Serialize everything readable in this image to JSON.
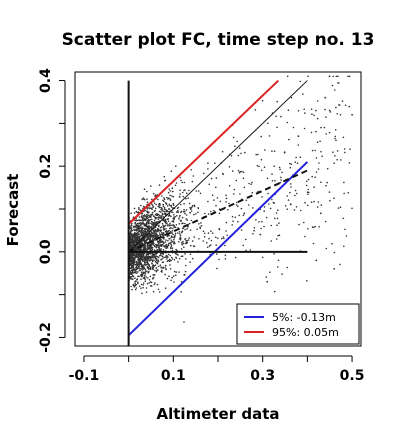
{
  "chart_data": {
    "type": "scatter",
    "title": "Scatter plot FC, time step no. 13",
    "xlabel": "Altimeter data",
    "ylabel": "Forecast",
    "xlim": [
      -0.12,
      0.52
    ],
    "ylim": [
      -0.22,
      0.42
    ],
    "x_ticks": [
      -0.1,
      0.1,
      0.3,
      0.5
    ],
    "x_tick_labels": [
      "-0.1",
      "0.1",
      "0.3",
      "0.5"
    ],
    "y_ticks": [
      -0.2,
      0.0,
      0.2,
      0.4
    ],
    "y_tick_labels": [
      "-0.2",
      "0.0",
      "0.2",
      "0.4"
    ],
    "grid": false,
    "legend_position": "bottom-right",
    "legend": [
      {
        "label": "5%: -0.13m",
        "color": "#2222dd"
      },
      {
        "label": "95%:  0.05m",
        "color": "#dd2222"
      }
    ],
    "series": [
      {
        "kind": "points",
        "color": "#333333",
        "cloud": {
          "count": 2400,
          "x_range": [
            0.0,
            0.5
          ],
          "y_range": [
            -0.2,
            0.41
          ],
          "trend_slope": 0.48,
          "mostly_clustered_near_x": [
            0.0,
            0.15
          ]
        },
        "sample_outliers": [
          {
            "x": 0.44,
            "y": 0.36
          },
          {
            "x": 0.45,
            "y": 0.33
          },
          {
            "x": 0.5,
            "y": 0.32
          },
          {
            "x": 0.38,
            "y": 0.27
          },
          {
            "x": 0.43,
            "y": 0.09
          },
          {
            "x": 0.46,
            "y": -0.04
          },
          {
            "x": 0.31,
            "y": -0.07
          },
          {
            "x": 0.42,
            "y": -0.02
          }
        ]
      },
      {
        "kind": "line",
        "label": "5%",
        "color": "#2222dd",
        "width": 2,
        "x": [
          0.0,
          0.4
        ],
        "y": [
          -0.195,
          0.21
        ]
      },
      {
        "kind": "line",
        "label": "95%",
        "color": "#dd2222",
        "width": 2,
        "x": [
          0.0,
          0.335
        ],
        "y": [
          0.065,
          0.4
        ]
      },
      {
        "kind": "line",
        "label": "identity",
        "color": "#111111",
        "width": 1,
        "x": [
          0.0,
          0.4
        ],
        "y": [
          0.0,
          0.4
        ]
      },
      {
        "kind": "dashed",
        "label": "regression",
        "color": "#111111",
        "width": 2,
        "x": [
          0.0,
          0.4
        ],
        "y": [
          0.0,
          0.19
        ]
      },
      {
        "kind": "line",
        "label": "zero-line",
        "color": "#111111",
        "width": 2,
        "x": [
          0.0,
          0.4
        ],
        "y": [
          0.0,
          0.0
        ]
      },
      {
        "kind": "line",
        "label": "vertical-axis-line",
        "color": "#111111",
        "width": 2,
        "x": [
          0.0,
          0.0
        ],
        "y": [
          -0.22,
          0.4
        ]
      }
    ]
  }
}
